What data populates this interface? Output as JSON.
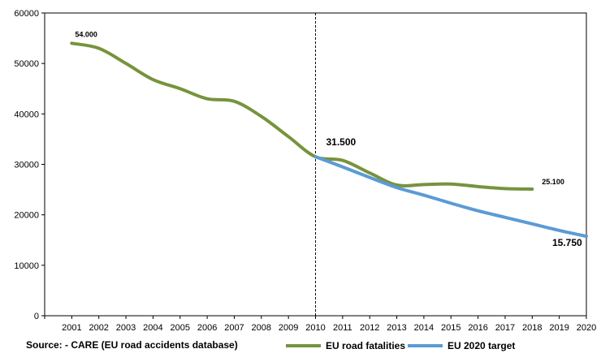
{
  "chart_data": {
    "type": "line",
    "x": [
      "2001",
      "2002",
      "2003",
      "2004",
      "2005",
      "2006",
      "2007",
      "2008",
      "2009",
      "2010",
      "2011",
      "2012",
      "2013",
      "2014",
      "2015",
      "2016",
      "2017",
      "2018",
      "2019",
      "2020"
    ],
    "ylim": [
      0,
      60000
    ],
    "yticks": [
      "0",
      "10000",
      "20000",
      "30000",
      "40000",
      "50000",
      "60000"
    ],
    "series": [
      {
        "name": "EU road fatalities",
        "color": "#77933C",
        "x": [
          "2001",
          "2002",
          "2003",
          "2004",
          "2005",
          "2006",
          "2007",
          "2008",
          "2009",
          "2010",
          "2011",
          "2012",
          "2013",
          "2014",
          "2015",
          "2016",
          "2017",
          "2018"
        ],
        "values": [
          54000,
          53000,
          50000,
          46800,
          45000,
          43000,
          42500,
          39500,
          35500,
          31500,
          30800,
          28300,
          25900,
          26000,
          26100,
          25600,
          25200,
          25100
        ]
      },
      {
        "name": "EU 2020  target",
        "color": "#5B9BD5",
        "x": [
          "2010",
          "2011",
          "2012",
          "2013",
          "2014",
          "2015",
          "2016",
          "2017",
          "2018",
          "2019",
          "2020"
        ],
        "values": [
          31500,
          29500,
          27400,
          25400,
          23900,
          22300,
          20800,
          19500,
          18200,
          16900,
          15750
        ]
      }
    ],
    "annotations": [
      {
        "label": "54.000",
        "x": "2001",
        "value": 54000
      },
      {
        "label": "31.500",
        "x": "2010",
        "value": 31500
      },
      {
        "label": "25.100",
        "x": "2018",
        "value": 25100
      },
      {
        "label": "15.750",
        "x": "2020",
        "value": 15750
      }
    ],
    "vline_x": "2010",
    "legend": [
      "EU road fatalities",
      "EU 2020  target"
    ]
  },
  "source_text": "Source: - CARE (EU road accidents database)"
}
